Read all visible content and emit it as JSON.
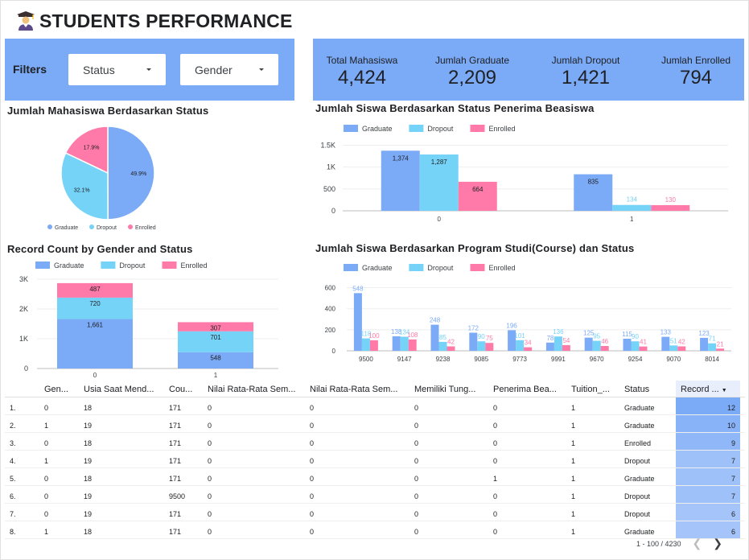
{
  "header": {
    "title": "STUDENTS PERFORMANCE",
    "icon": "graduate-icon"
  },
  "filters": {
    "label": "Filters",
    "status": "Status",
    "gender": "Gender"
  },
  "kpis": [
    {
      "label": "Total Mahasiswa",
      "value": "4,424"
    },
    {
      "label": "Jumlah Graduate",
      "value": "2,209"
    },
    {
      "label": "Jumlah Dropout",
      "value": "1,421"
    },
    {
      "label": "Jumlah Enrolled",
      "value": "794"
    }
  ],
  "colors": {
    "graduate": "#7baaf7",
    "dropout": "#75d3f8",
    "enrolled": "#ff7aa8",
    "panel": "#7baaf7"
  },
  "legend": [
    "Graduate",
    "Dropout",
    "Enrolled"
  ],
  "chart_data": [
    {
      "type": "pie",
      "title": "Jumlah Mahasiswa Berdasarkan Status",
      "categories": [
        "Graduate",
        "Dropout",
        "Enrolled"
      ],
      "values": [
        49.9,
        32.1,
        17.9
      ],
      "labels": [
        "49.9%",
        "32.1%",
        "17.9%"
      ],
      "legend": "bottom"
    },
    {
      "type": "bar",
      "title": "Jumlah Siswa Berdasarkan Status Penerima Beasiswa",
      "categories": [
        "0",
        "1"
      ],
      "series": [
        {
          "name": "Graduate",
          "values": [
            1374,
            835
          ]
        },
        {
          "name": "Dropout",
          "values": [
            1287,
            134
          ]
        },
        {
          "name": "Enrolled",
          "values": [
            664,
            130
          ]
        }
      ],
      "data_labels": [
        [
          "1,374",
          "1,287",
          "664"
        ],
        [
          "835",
          "134",
          "130"
        ]
      ],
      "yticks": [
        "0",
        "500",
        "1K",
        "1.5K"
      ],
      "ylim": [
        0,
        1600
      ],
      "legend": "top-left",
      "grid": true
    },
    {
      "type": "bar",
      "stacked": true,
      "title": "Record Count by Gender and Status",
      "categories": [
        "0",
        "1"
      ],
      "series": [
        {
          "name": "Graduate",
          "values": [
            1661,
            548
          ]
        },
        {
          "name": "Dropout",
          "values": [
            720,
            701
          ]
        },
        {
          "name": "Enrolled",
          "values": [
            487,
            307
          ]
        }
      ],
      "yticks": [
        "0",
        "1K",
        "2K",
        "3K"
      ],
      "ylim": [
        0,
        3000
      ],
      "legend": "top-left",
      "grid": true
    },
    {
      "type": "bar",
      "title": "Jumlah Siswa Berdasarkan Program Studi(Course) dan Status",
      "categories": [
        "9500",
        "9147",
        "9238",
        "9085",
        "9773",
        "9991",
        "9670",
        "9254",
        "9070",
        "8014"
      ],
      "series": [
        {
          "name": "Graduate",
          "values": [
            548,
            138,
            248,
            172,
            196,
            78,
            125,
            115,
            133,
            123
          ]
        },
        {
          "name": "Dropout",
          "values": [
            118,
            134,
            85,
            90,
            101,
            136,
            95,
            90,
            51,
            71
          ]
        },
        {
          "name": "Enrolled",
          "values": [
            100,
            108,
            42,
            75,
            34,
            54,
            46,
            41,
            42,
            21
          ]
        }
      ],
      "yticks": [
        "0",
        "200",
        "400",
        "600"
      ],
      "ylim": [
        0,
        650
      ],
      "legend": "top-left",
      "grid": true
    }
  ],
  "table": {
    "columns": [
      "Gen...",
      "Usia Saat Mend...",
      "Cou...",
      "Nilai Rata-Rata Sem...",
      "Nilai Rata-Rata Sem...",
      "Memiliki Tung...",
      "Penerima Bea...",
      "Tuition_...",
      "Status",
      "Record ..."
    ],
    "rows": [
      [
        "1.",
        "0",
        "18",
        "171",
        "0",
        "0",
        "0",
        "0",
        "1",
        "Graduate",
        "12"
      ],
      [
        "2.",
        "1",
        "19",
        "171",
        "0",
        "0",
        "0",
        "0",
        "1",
        "Graduate",
        "10"
      ],
      [
        "3.",
        "0",
        "18",
        "171",
        "0",
        "0",
        "0",
        "0",
        "1",
        "Enrolled",
        "9"
      ],
      [
        "4.",
        "1",
        "19",
        "171",
        "0",
        "0",
        "0",
        "0",
        "1",
        "Dropout",
        "7"
      ],
      [
        "5.",
        "0",
        "18",
        "171",
        "0",
        "0",
        "0",
        "1",
        "1",
        "Graduate",
        "7"
      ],
      [
        "6.",
        "0",
        "19",
        "9500",
        "0",
        "0",
        "0",
        "0",
        "1",
        "Dropout",
        "7"
      ],
      [
        "7.",
        "0",
        "19",
        "171",
        "0",
        "0",
        "0",
        "0",
        "1",
        "Dropout",
        "6"
      ],
      [
        "8.",
        "1",
        "18",
        "171",
        "0",
        "0",
        "0",
        "0",
        "1",
        "Graduate",
        "6"
      ]
    ],
    "record_max": 12,
    "pager": "1 - 100 / 4230"
  }
}
